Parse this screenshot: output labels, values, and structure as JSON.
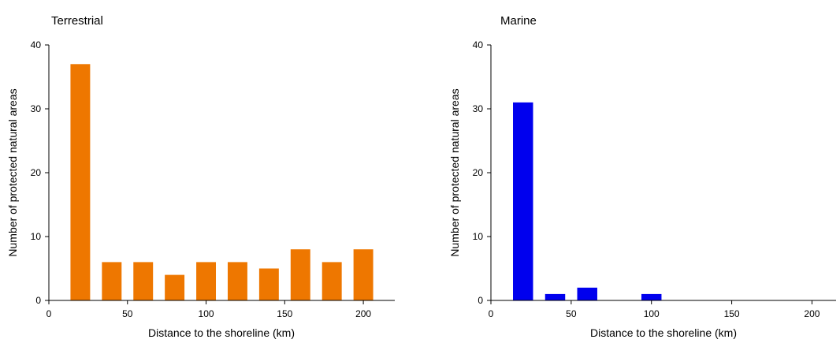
{
  "chart_data": [
    {
      "type": "bar",
      "title": "Terrestrial",
      "xlabel": "Distance to the shoreline (km)",
      "ylabel": "Number of protected natural areas",
      "xlim": [
        0,
        220
      ],
      "ylim": [
        0,
        40
      ],
      "xticks": [
        0,
        50,
        100,
        150,
        200
      ],
      "yticks": [
        0,
        10,
        20,
        30,
        40
      ],
      "bar_width": 12.5,
      "color": "#EE7700",
      "grid": false,
      "x": [
        20,
        40,
        60,
        80,
        100,
        120,
        140,
        160,
        180,
        200
      ],
      "values": [
        37,
        6,
        6,
        4,
        6,
        6,
        5,
        8,
        6,
        8
      ]
    },
    {
      "type": "bar",
      "title": "Marine",
      "xlabel": "Distance to the shoreline (km)",
      "ylabel": "Number of protected natural areas",
      "xlim": [
        0,
        215
      ],
      "ylim": [
        0,
        40
      ],
      "xticks": [
        0,
        50,
        100,
        150,
        200
      ],
      "yticks": [
        0,
        10,
        20,
        30,
        40
      ],
      "bar_width": 12.5,
      "color": "#0000EE",
      "grid": false,
      "x": [
        20,
        40,
        60,
        100
      ],
      "values": [
        31,
        1,
        2,
        1
      ]
    }
  ]
}
